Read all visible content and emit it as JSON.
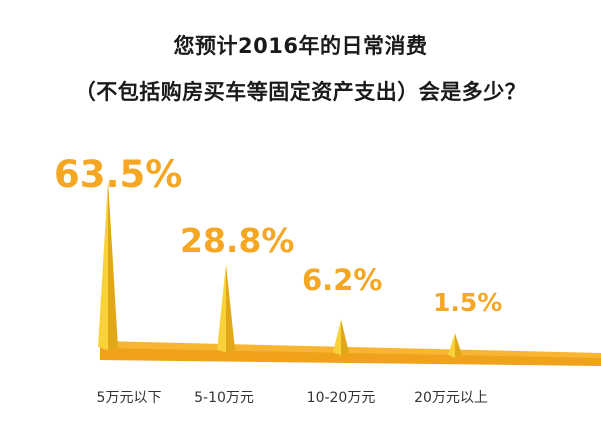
{
  "title": {
    "line1": "您预计2016年的日常消费",
    "line2": "（不包括购房买车等固定资产支出）会是多少？"
  },
  "colors": {
    "spike_light": "#f9d23a",
    "spike_dark": "#e0a718",
    "base_top": "#f7b531",
    "base_side": "#f0a21c",
    "label": "#f5a623",
    "text": "#333333"
  },
  "chart_data": {
    "type": "bar",
    "categories": [
      "5万元以下",
      "5-10万元",
      "10-20万元",
      "20万元以上"
    ],
    "values": [
      63.5,
      28.8,
      6.2,
      1.5
    ],
    "value_labels": [
      "63.5%",
      "28.8%",
      "6.2%",
      "1.5%"
    ],
    "ylim": [
      0,
      70
    ],
    "grid": false,
    "legend": "none"
  }
}
